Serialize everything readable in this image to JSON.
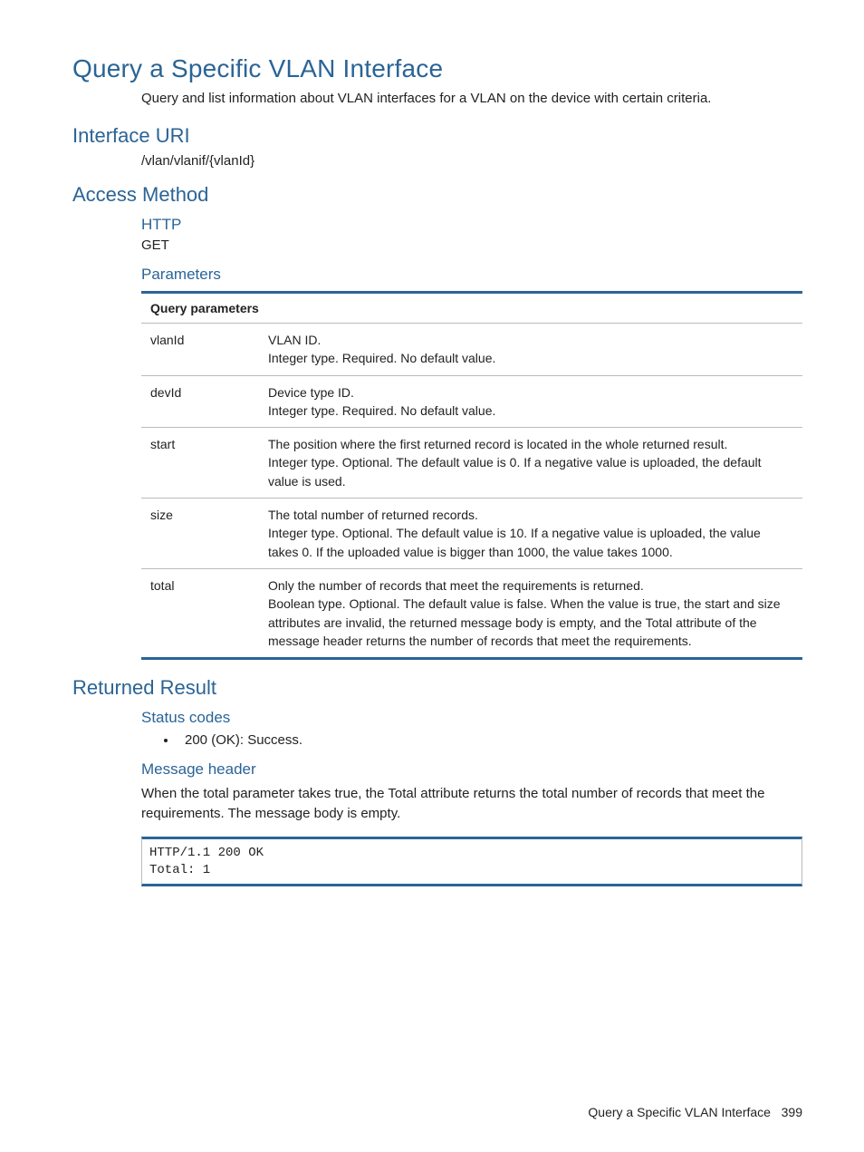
{
  "title": "Query a Specific VLAN Interface",
  "description": "Query and list information about VLAN interfaces for a VLAN on the device with certain criteria.",
  "interface_uri": {
    "heading": "Interface URI",
    "value": "/vlan/vlanif/{vlanId}"
  },
  "access_method": {
    "heading": "Access Method",
    "http_heading": "HTTP",
    "http_value": "GET",
    "parameters_heading": "Parameters",
    "table_header": "Query parameters",
    "rows": [
      {
        "name": "vlanId",
        "line1": "VLAN ID.",
        "line2": "Integer type. Required. No default value."
      },
      {
        "name": "devId",
        "line1": "Device type ID.",
        "line2": "Integer type. Required. No default value."
      },
      {
        "name": "start",
        "line1": "The position where the first returned record is located in the whole returned result.",
        "line2": "Integer type. Optional. The default value is 0. If a negative value is uploaded, the default value is used."
      },
      {
        "name": "size",
        "line1": "The total number of returned records.",
        "line2": "Integer type. Optional. The default value is 10. If a negative value is uploaded, the value takes 0. If the uploaded value is bigger than 1000, the value takes 1000."
      },
      {
        "name": "total",
        "line1": "Only the number of records that meet the requirements is returned.",
        "line2": "Boolean type. Optional. The default value is false. When the value is true, the start and size attributes are invalid, the returned message body is empty, and the Total attribute of the message header returns the number of records that meet the requirements."
      }
    ]
  },
  "returned_result": {
    "heading": "Returned Result",
    "status_codes_heading": "Status codes",
    "status_codes_item": "200 (OK): Success.",
    "message_header_heading": "Message header",
    "message_header_text": "When the total parameter takes true, the Total attribute returns the total number of records that meet the requirements. The message body is empty.",
    "code": "HTTP/1.1 200 OK\nTotal: 1"
  },
  "footer": {
    "label": "Query a Specific VLAN Interface",
    "page": "399"
  },
  "colors": {
    "heading_blue": "#2a6496",
    "rule_blue": "#2a6496",
    "border_gray": "#bbbbbb",
    "text": "#222222",
    "background": "#ffffff"
  },
  "fontsizes": {
    "h1": 28,
    "h2": 22,
    "h3": 17,
    "body": 15,
    "table": 14,
    "code": 14,
    "footer": 14
  }
}
